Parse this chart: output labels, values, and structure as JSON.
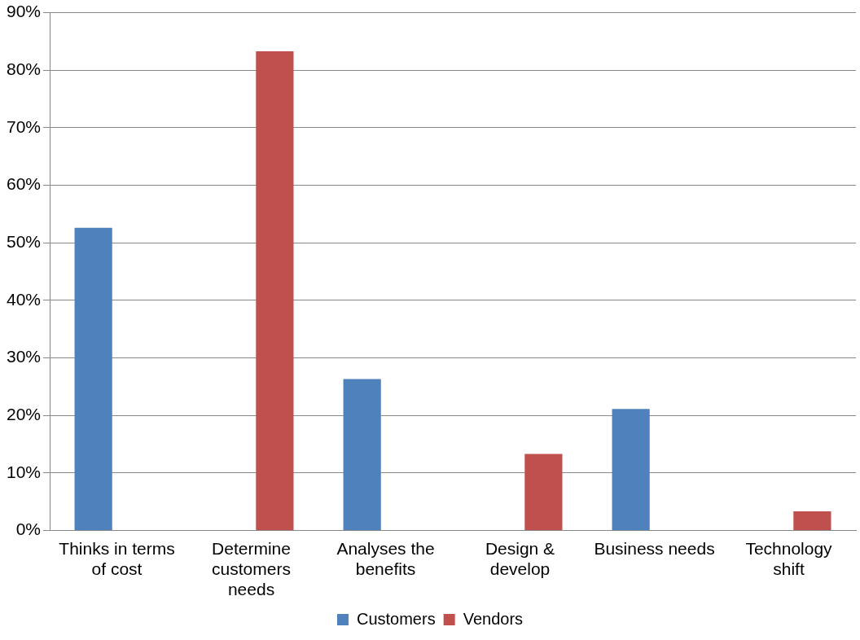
{
  "chart_data": {
    "type": "bar",
    "categories": [
      "Thinks in terms of cost",
      "Determine customers needs",
      "Analyses the benefits",
      "Design & develop",
      "Business needs",
      "Technology shift"
    ],
    "series": [
      {
        "name": "Customers",
        "color": "#4f81bd",
        "values": [
          52.6,
          null,
          26.3,
          null,
          21.1,
          null
        ]
      },
      {
        "name": "Vendors",
        "color": "#c0504d",
        "values": [
          null,
          83.3,
          null,
          13.3,
          null,
          3.3
        ]
      }
    ],
    "ylim": [
      0,
      90
    ],
    "yticks": [
      {
        "value": 0,
        "label": "0%"
      },
      {
        "value": 10,
        "label": "10%"
      },
      {
        "value": 20,
        "label": "20%"
      },
      {
        "value": 30,
        "label": "30%"
      },
      {
        "value": 40,
        "label": "40%"
      },
      {
        "value": 50,
        "label": "50%"
      },
      {
        "value": 60,
        "label": "60%"
      },
      {
        "value": 70,
        "label": "70%"
      },
      {
        "value": 80,
        "label": "80%"
      },
      {
        "value": 90,
        "label": "90%"
      }
    ],
    "grid": "y",
    "legend": "bottom"
  }
}
